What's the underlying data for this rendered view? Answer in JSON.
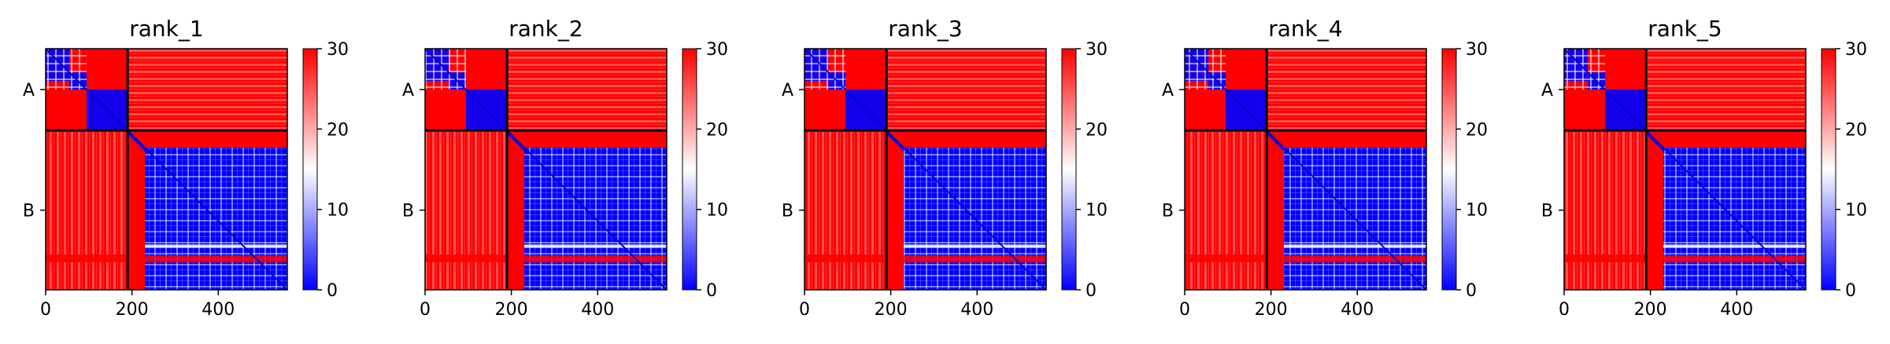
{
  "colors": {
    "low": "#0000ff",
    "mid": "#ffffff",
    "high": "#ff0000",
    "divider": "#000000"
  },
  "chart_data": [
    {
      "type": "heatmap",
      "title": "rank_1",
      "matrix_size": 560,
      "boundary": 190,
      "xticks": [
        0,
        200,
        400
      ],
      "yticklabels": [
        "A",
        "B"
      ],
      "colorbar": {
        "ticks": [
          0,
          10,
          20,
          30
        ],
        "range": [
          0,
          30
        ],
        "colormap": "bwr"
      }
    },
    {
      "type": "heatmap",
      "title": "rank_2",
      "matrix_size": 560,
      "boundary": 190,
      "xticks": [
        0,
        200,
        400
      ],
      "yticklabels": [
        "A",
        "B"
      ],
      "colorbar": {
        "ticks": [
          0,
          10,
          20,
          30
        ],
        "range": [
          0,
          30
        ],
        "colormap": "bwr"
      }
    },
    {
      "type": "heatmap",
      "title": "rank_3",
      "matrix_size": 560,
      "boundary": 190,
      "xticks": [
        0,
        200,
        400
      ],
      "yticklabels": [
        "A",
        "B"
      ],
      "colorbar": {
        "ticks": [
          0,
          10,
          20,
          30
        ],
        "range": [
          0,
          30
        ],
        "colormap": "bwr"
      }
    },
    {
      "type": "heatmap",
      "title": "rank_4",
      "matrix_size": 560,
      "boundary": 190,
      "xticks": [
        0,
        200,
        400
      ],
      "yticklabels": [
        "A",
        "B"
      ],
      "colorbar": {
        "ticks": [
          0,
          10,
          20,
          30
        ],
        "range": [
          0,
          30
        ],
        "colormap": "bwr"
      }
    },
    {
      "type": "heatmap",
      "title": "rank_5",
      "matrix_size": 560,
      "boundary": 190,
      "xticks": [
        0,
        200,
        400
      ],
      "yticklabels": [
        "A",
        "B"
      ],
      "colorbar": {
        "ticks": [
          0,
          10,
          20,
          30
        ],
        "range": [
          0,
          30
        ],
        "colormap": "bwr"
      }
    }
  ]
}
